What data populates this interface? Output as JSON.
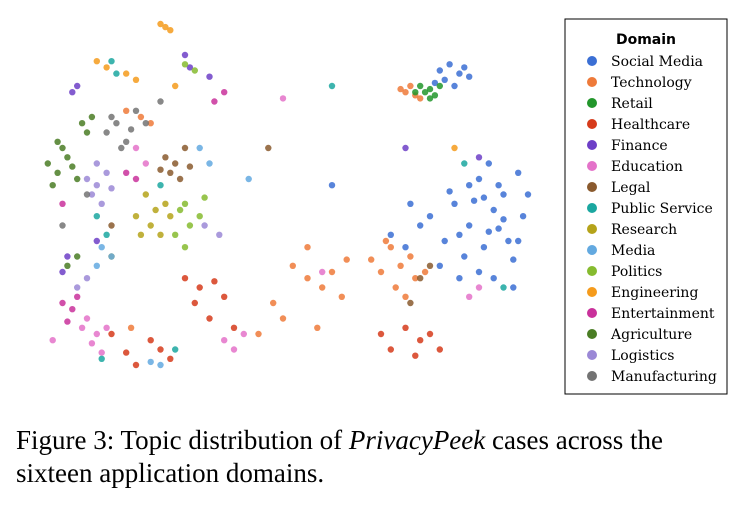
{
  "caption": {
    "prefix": "Figure 3: Topic distribution of ",
    "emphasis": "PrivacyPeek",
    "suffix": " cases across the sixteen application domains."
  },
  "chart_data": {
    "type": "scatter",
    "title": "",
    "xlabel": "",
    "ylabel": "",
    "axes_visible": false,
    "grid": false,
    "legend": {
      "title": "Domain",
      "placement": "right"
    },
    "series": [
      {
        "name": "Social Media",
        "color": "#3b6fd4",
        "points": [
          [
            0.82,
            0.05
          ],
          [
            0.84,
            0.03
          ],
          [
            0.86,
            0.06
          ],
          [
            0.83,
            0.08
          ],
          [
            0.85,
            0.1
          ],
          [
            0.87,
            0.04
          ],
          [
            0.81,
            0.09
          ],
          [
            0.88,
            0.07
          ],
          [
            0.9,
            0.4
          ],
          [
            0.92,
            0.35
          ],
          [
            0.95,
            0.45
          ],
          [
            0.98,
            0.38
          ],
          [
            0.93,
            0.5
          ],
          [
            0.88,
            0.55
          ],
          [
            0.96,
            0.6
          ],
          [
            0.99,
            0.52
          ],
          [
            0.85,
            0.48
          ],
          [
            0.91,
            0.62
          ],
          [
            0.94,
            0.42
          ],
          [
            0.97,
            0.66
          ],
          [
            0.86,
            0.58
          ],
          [
            0.89,
            0.47
          ],
          [
            0.92,
            0.57
          ],
          [
            0.95,
            0.53
          ],
          [
            0.8,
            0.52
          ],
          [
            0.83,
            0.6
          ],
          [
            0.87,
            0.65
          ],
          [
            0.78,
            0.55
          ],
          [
            0.9,
            0.7
          ],
          [
            0.93,
            0.72
          ],
          [
            0.97,
            0.75
          ],
          [
            1.0,
            0.45
          ],
          [
            0.76,
            0.48
          ],
          [
            0.84,
            0.44
          ],
          [
            0.88,
            0.42
          ],
          [
            0.91,
            0.46
          ],
          [
            0.94,
            0.56
          ],
          [
            0.82,
            0.68
          ],
          [
            0.86,
            0.72
          ],
          [
            0.98,
            0.6
          ],
          [
            0.72,
            0.58
          ],
          [
            0.75,
            0.62
          ],
          [
            0.6,
            0.42
          ]
        ]
      },
      {
        "name": "Technology",
        "color": "#ee7a3a",
        "points": [
          [
            0.75,
            0.12
          ],
          [
            0.76,
            0.1
          ],
          [
            0.77,
            0.13
          ],
          [
            0.74,
            0.11
          ],
          [
            0.78,
            0.14
          ],
          [
            0.72,
            0.62
          ],
          [
            0.74,
            0.68
          ],
          [
            0.76,
            0.65
          ],
          [
            0.7,
            0.7
          ],
          [
            0.73,
            0.75
          ],
          [
            0.77,
            0.72
          ],
          [
            0.75,
            0.78
          ],
          [
            0.68,
            0.66
          ],
          [
            0.71,
            0.6
          ],
          [
            0.79,
            0.7
          ],
          [
            0.55,
            0.72
          ],
          [
            0.58,
            0.75
          ],
          [
            0.6,
            0.7
          ],
          [
            0.62,
            0.78
          ],
          [
            0.52,
            0.68
          ],
          [
            0.48,
            0.8
          ],
          [
            0.5,
            0.85
          ],
          [
            0.45,
            0.9
          ],
          [
            0.55,
            0.62
          ],
          [
            0.57,
            0.88
          ],
          [
            0.63,
            0.66
          ],
          [
            0.21,
            0.2
          ],
          [
            0.23,
            0.22
          ],
          [
            0.18,
            0.18
          ],
          [
            0.19,
            0.88
          ]
        ]
      },
      {
        "name": "Retail",
        "color": "#22962b",
        "points": [
          [
            0.79,
            0.12
          ],
          [
            0.8,
            0.11
          ],
          [
            0.81,
            0.13
          ],
          [
            0.78,
            0.1
          ],
          [
            0.8,
            0.14
          ],
          [
            0.82,
            0.1
          ],
          [
            0.77,
            0.12
          ]
        ]
      },
      {
        "name": "Healthcare",
        "color": "#d63b1b",
        "points": [
          [
            0.3,
            0.72
          ],
          [
            0.33,
            0.75
          ],
          [
            0.36,
            0.73
          ],
          [
            0.32,
            0.8
          ],
          [
            0.35,
            0.85
          ],
          [
            0.25,
            0.95
          ],
          [
            0.27,
            0.98
          ],
          [
            0.18,
            0.96
          ],
          [
            0.2,
            1.0
          ],
          [
            0.23,
            0.92
          ],
          [
            0.15,
            0.9
          ],
          [
            0.38,
            0.78
          ],
          [
            0.4,
            0.88
          ],
          [
            0.75,
            0.88
          ],
          [
            0.78,
            0.92
          ],
          [
            0.8,
            0.9
          ],
          [
            0.72,
            0.95
          ],
          [
            0.77,
            0.97
          ],
          [
            0.7,
            0.9
          ],
          [
            0.82,
            0.95
          ]
        ]
      },
      {
        "name": "Finance",
        "color": "#6d3fc7",
        "points": [
          [
            0.3,
            0.0
          ],
          [
            0.31,
            0.04
          ],
          [
            0.35,
            0.07
          ],
          [
            0.07,
            0.12
          ],
          [
            0.08,
            0.1
          ],
          [
            0.06,
            0.65
          ],
          [
            0.05,
            0.7
          ],
          [
            0.9,
            0.33
          ],
          [
            0.75,
            0.3
          ],
          [
            0.12,
            0.6
          ]
        ]
      },
      {
        "name": "Education",
        "color": "#e472c9",
        "points": [
          [
            0.1,
            0.85
          ],
          [
            0.12,
            0.9
          ],
          [
            0.14,
            0.88
          ],
          [
            0.11,
            0.93
          ],
          [
            0.13,
            0.96
          ],
          [
            0.09,
            0.88
          ],
          [
            0.38,
            0.92
          ],
          [
            0.4,
            0.95
          ],
          [
            0.42,
            0.9
          ],
          [
            0.2,
            0.3
          ],
          [
            0.22,
            0.35
          ],
          [
            0.5,
            0.14
          ],
          [
            0.58,
            0.7
          ],
          [
            0.88,
            0.78
          ],
          [
            0.9,
            0.75
          ],
          [
            0.03,
            0.92
          ]
        ]
      },
      {
        "name": "Legal",
        "color": "#8a5a2e",
        "points": [
          [
            0.26,
            0.33
          ],
          [
            0.28,
            0.35
          ],
          [
            0.3,
            0.3
          ],
          [
            0.27,
            0.38
          ],
          [
            0.29,
            0.4
          ],
          [
            0.25,
            0.37
          ],
          [
            0.31,
            0.36
          ],
          [
            0.78,
            0.72
          ],
          [
            0.8,
            0.68
          ],
          [
            0.76,
            0.8
          ],
          [
            0.47,
            0.3
          ],
          [
            0.15,
            0.55
          ]
        ]
      },
      {
        "name": "Public Service",
        "color": "#1ba7a0",
        "points": [
          [
            0.15,
            0.02
          ],
          [
            0.16,
            0.06
          ],
          [
            0.12,
            0.52
          ],
          [
            0.14,
            0.58
          ],
          [
            0.13,
            0.98
          ],
          [
            0.28,
            0.95
          ],
          [
            0.87,
            0.35
          ],
          [
            0.95,
            0.75
          ],
          [
            0.6,
            0.1
          ],
          [
            0.25,
            0.42
          ]
        ]
      },
      {
        "name": "Research",
        "color": "#b5a31a",
        "points": [
          [
            0.22,
            0.45
          ],
          [
            0.24,
            0.5
          ],
          [
            0.26,
            0.48
          ],
          [
            0.23,
            0.55
          ],
          [
            0.25,
            0.58
          ],
          [
            0.27,
            0.52
          ],
          [
            0.2,
            0.52
          ],
          [
            0.21,
            0.58
          ],
          [
            0.15,
            0.65
          ]
        ]
      },
      {
        "name": "Media",
        "color": "#63a9e0",
        "points": [
          [
            0.13,
            0.62
          ],
          [
            0.15,
            0.65
          ],
          [
            0.12,
            0.68
          ],
          [
            0.33,
            0.3
          ],
          [
            0.35,
            0.35
          ],
          [
            0.23,
            0.99
          ],
          [
            0.25,
            1.0
          ],
          [
            0.43,
            0.4
          ]
        ]
      },
      {
        "name": "Politics",
        "color": "#86bb2f",
        "points": [
          [
            0.3,
            0.03
          ],
          [
            0.32,
            0.05
          ],
          [
            0.3,
            0.48
          ],
          [
            0.33,
            0.52
          ],
          [
            0.31,
            0.55
          ],
          [
            0.29,
            0.5
          ],
          [
            0.34,
            0.46
          ],
          [
            0.28,
            0.58
          ],
          [
            0.3,
            0.62
          ]
        ]
      },
      {
        "name": "Engineering",
        "color": "#f59b1c",
        "points": [
          [
            0.25,
            -0.1
          ],
          [
            0.27,
            -0.08
          ],
          [
            0.26,
            -0.09
          ],
          [
            0.12,
            0.02
          ],
          [
            0.14,
            0.04
          ],
          [
            0.18,
            0.06
          ],
          [
            0.2,
            0.08
          ],
          [
            0.85,
            0.3
          ],
          [
            0.28,
            0.1
          ]
        ]
      },
      {
        "name": "Entertainment",
        "color": "#c9319b",
        "points": [
          [
            0.05,
            0.8
          ],
          [
            0.07,
            0.82
          ],
          [
            0.06,
            0.86
          ],
          [
            0.08,
            0.78
          ],
          [
            0.18,
            0.38
          ],
          [
            0.2,
            0.4
          ],
          [
            0.36,
            0.15
          ],
          [
            0.38,
            0.12
          ],
          [
            0.05,
            0.48
          ]
        ]
      },
      {
        "name": "Agriculture",
        "color": "#4a7d24",
        "points": [
          [
            0.02,
            0.35
          ],
          [
            0.04,
            0.38
          ],
          [
            0.03,
            0.42
          ],
          [
            0.05,
            0.3
          ],
          [
            0.07,
            0.36
          ],
          [
            0.06,
            0.33
          ],
          [
            0.08,
            0.4
          ],
          [
            0.04,
            0.28
          ],
          [
            0.1,
            0.25
          ],
          [
            0.11,
            0.2
          ],
          [
            0.09,
            0.22
          ],
          [
            0.06,
            0.68
          ],
          [
            0.08,
            0.65
          ]
        ]
      },
      {
        "name": "Logistics",
        "color": "#9b88d6",
        "points": [
          [
            0.1,
            0.4
          ],
          [
            0.12,
            0.42
          ],
          [
            0.14,
            0.38
          ],
          [
            0.11,
            0.45
          ],
          [
            0.13,
            0.48
          ],
          [
            0.15,
            0.43
          ],
          [
            0.12,
            0.35
          ],
          [
            0.08,
            0.75
          ],
          [
            0.1,
            0.72
          ],
          [
            0.34,
            0.55
          ],
          [
            0.37,
            0.58
          ]
        ]
      },
      {
        "name": "Manufacturing",
        "color": "#737373",
        "points": [
          [
            0.14,
            0.25
          ],
          [
            0.16,
            0.22
          ],
          [
            0.18,
            0.28
          ],
          [
            0.15,
            0.2
          ],
          [
            0.17,
            0.3
          ],
          [
            0.2,
            0.18
          ],
          [
            0.22,
            0.22
          ],
          [
            0.19,
            0.24
          ],
          [
            0.25,
            0.15
          ],
          [
            0.1,
            0.45
          ],
          [
            0.05,
            0.55
          ]
        ]
      }
    ]
  }
}
